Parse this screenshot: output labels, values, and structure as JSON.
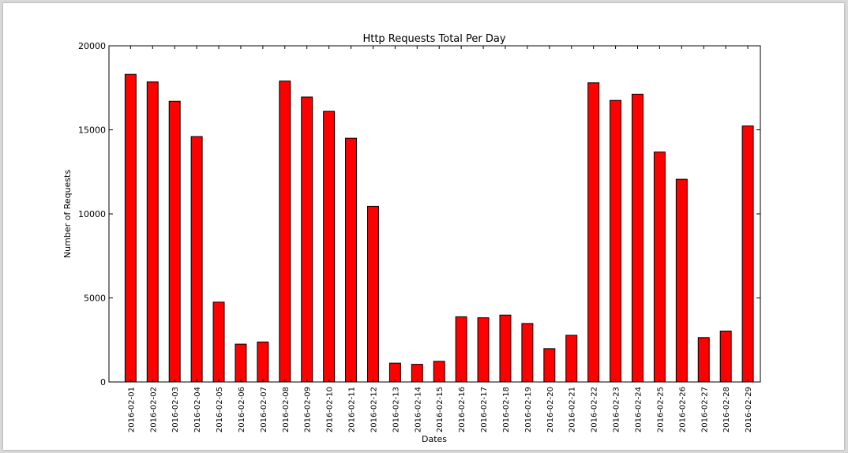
{
  "chart_data": {
    "type": "bar",
    "title": "Http Requests Total Per Day",
    "xlabel": "Dates",
    "ylabel": "Number of Requests",
    "ylim": [
      0,
      20000
    ],
    "yticks": [
      "0",
      "5000",
      "10000",
      "15000",
      "20000"
    ],
    "ytick_values": [
      0,
      5000,
      10000,
      15000,
      20000
    ],
    "categories": [
      "2016-02-01",
      "2016-02-02",
      "2016-02-03",
      "2016-02-04",
      "2016-02-05",
      "2016-02-06",
      "2016-02-07",
      "2016-02-08",
      "2016-02-09",
      "2016-02-10",
      "2016-02-11",
      "2016-02-12",
      "2016-02-13",
      "2016-02-14",
      "2016-02-15",
      "2016-02-16",
      "2016-02-17",
      "2016-02-18",
      "2016-02-19",
      "2016-02-20",
      "2016-02-21",
      "2016-02-22",
      "2016-02-23",
      "2016-02-24",
      "2016-02-25",
      "2016-02-26",
      "2016-02-27",
      "2016-02-28",
      "2016-02-29"
    ],
    "values": [
      18300,
      17850,
      16700,
      14600,
      4750,
      2250,
      2380,
      17900,
      16950,
      16100,
      14500,
      10450,
      1120,
      1050,
      1230,
      3880,
      3820,
      3980,
      3480,
      1980,
      2780,
      17800,
      16750,
      17120,
      13680,
      12060,
      2640,
      3030,
      15230
    ],
    "bar_color": "#ff0000",
    "edge_color": "#000000",
    "grid": false,
    "legend": "none"
  }
}
